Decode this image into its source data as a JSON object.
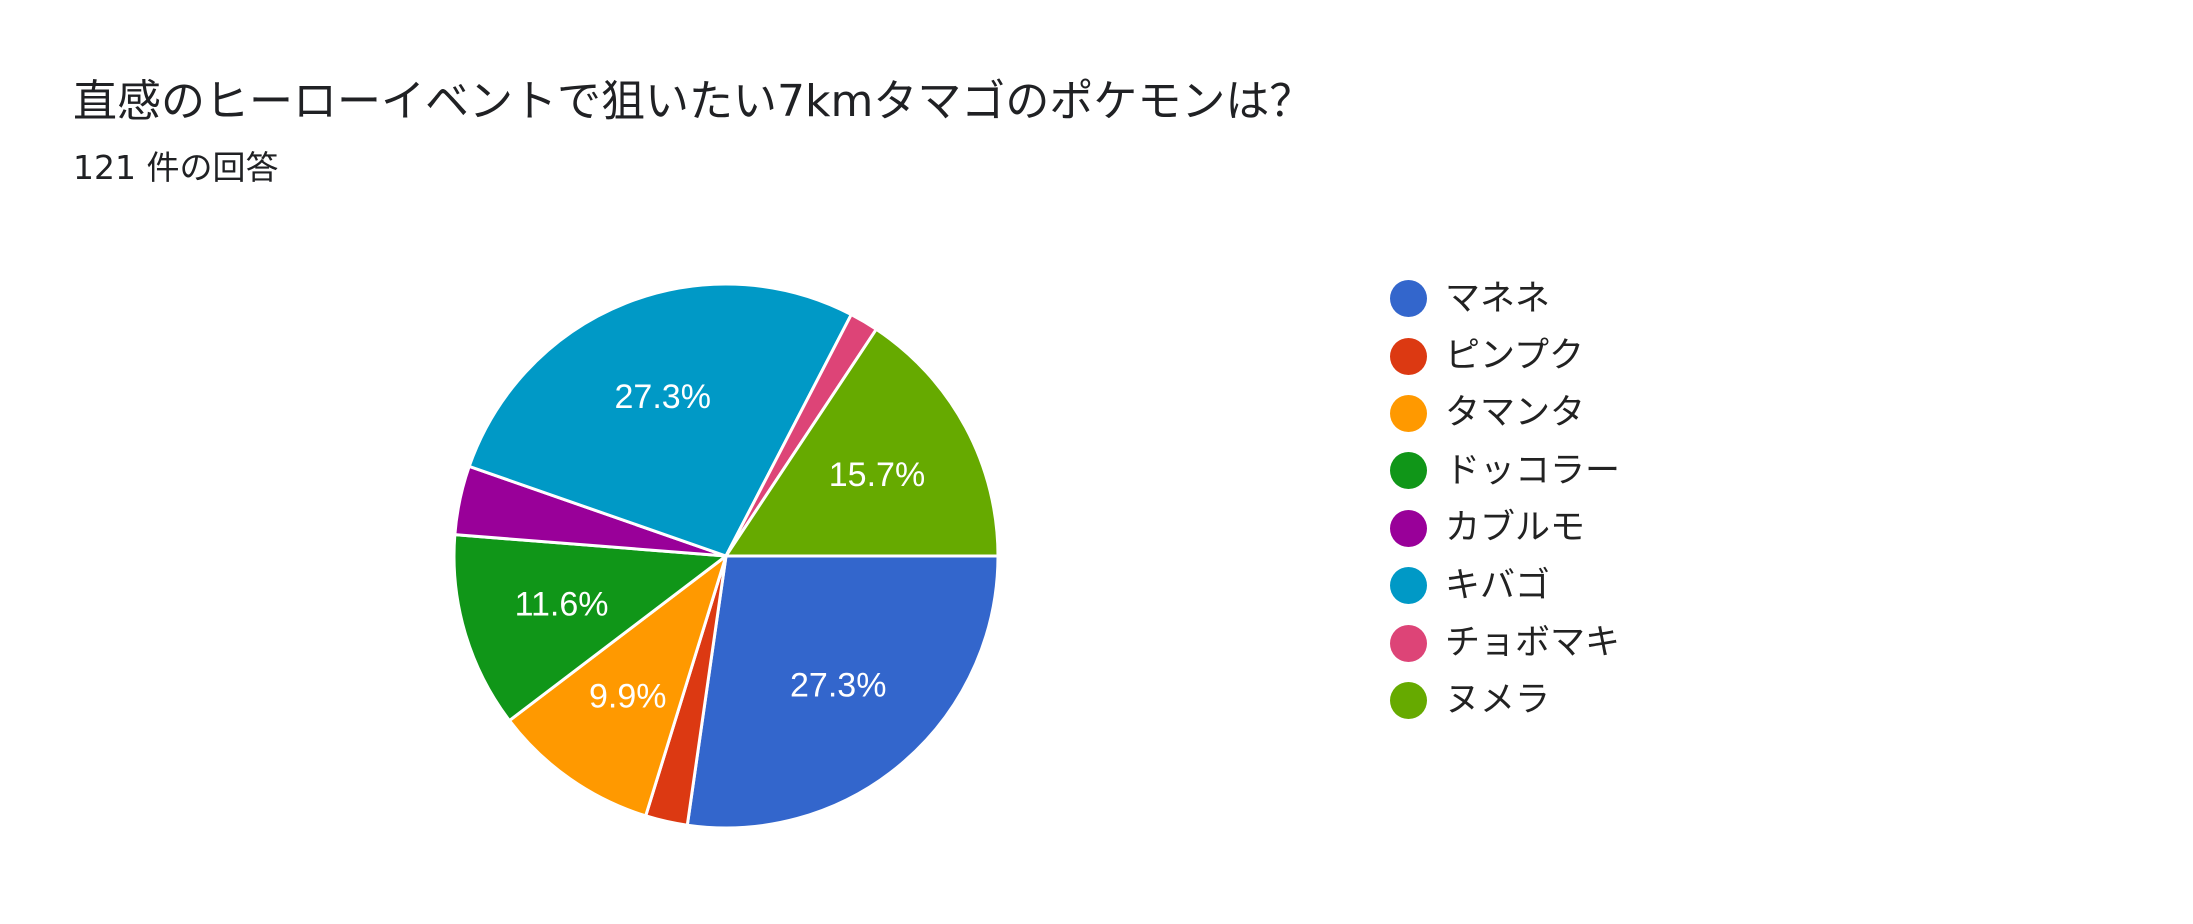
{
  "header": {
    "title": "直感のヒーローイベントで狙いたい7kmタマゴのポケモンは？",
    "subtitle": "121 件の回答"
  },
  "chart_data": {
    "type": "pie",
    "title": "直感のヒーローイベントで狙いたい7kmタマゴのポケモンは？",
    "subtitle": "121 件の回答",
    "legend_position": "right",
    "slices": [
      {
        "name": "マネネ",
        "percent": 27.3,
        "label": "27.3%",
        "color": "#3366cc"
      },
      {
        "name": "ピンプク",
        "percent": 2.5,
        "label": "",
        "color": "#dc3912"
      },
      {
        "name": "タマンタ",
        "percent": 9.9,
        "label": "9.9%",
        "color": "#ff9900"
      },
      {
        "name": "ドッコラー",
        "percent": 11.6,
        "label": "11.6%",
        "color": "#109618"
      },
      {
        "name": "カブルモ",
        "percent": 4.1,
        "label": "",
        "color": "#990099"
      },
      {
        "name": "キバゴ",
        "percent": 27.3,
        "label": "27.3%",
        "color": "#0099c6"
      },
      {
        "name": "チョボマキ",
        "percent": 1.7,
        "label": "",
        "color": "#dd4477"
      },
      {
        "name": "ヌメラ",
        "percent": 15.7,
        "label": "15.7%",
        "color": "#66aa00"
      }
    ]
  }
}
